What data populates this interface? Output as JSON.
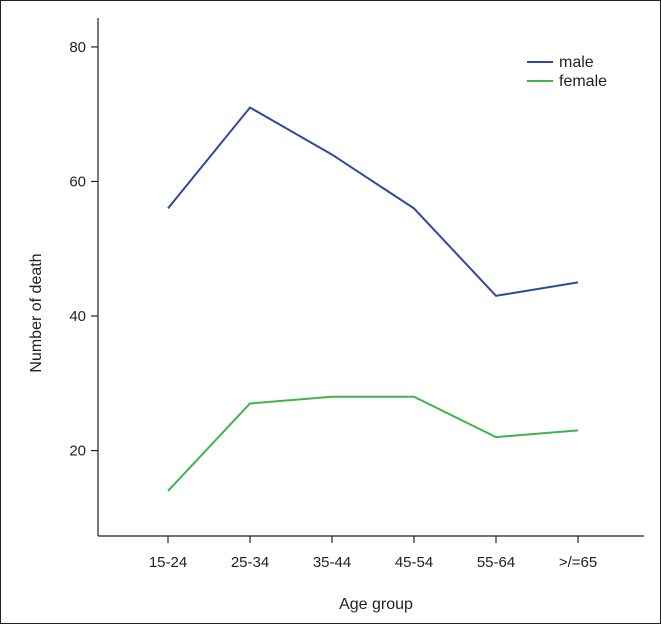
{
  "chart_data": {
    "type": "line",
    "title": "",
    "xlabel": "Age group",
    "ylabel": "Number of death",
    "categories": [
      "15-24",
      "25-34",
      "35-44",
      "45-54",
      "55-64",
      ">/=65"
    ],
    "series": [
      {
        "name": "male",
        "values": [
          56,
          71,
          64,
          56,
          43,
          45
        ],
        "color": "#2e4a9a"
      },
      {
        "name": "female",
        "values": [
          14,
          27,
          28,
          28,
          22,
          23
        ],
        "color": "#3db54a"
      }
    ],
    "yticks": [
      20,
      40,
      60,
      80
    ],
    "ylim": [
      7.3,
      84.3
    ],
    "grid": false,
    "legend_position": "top-right"
  }
}
